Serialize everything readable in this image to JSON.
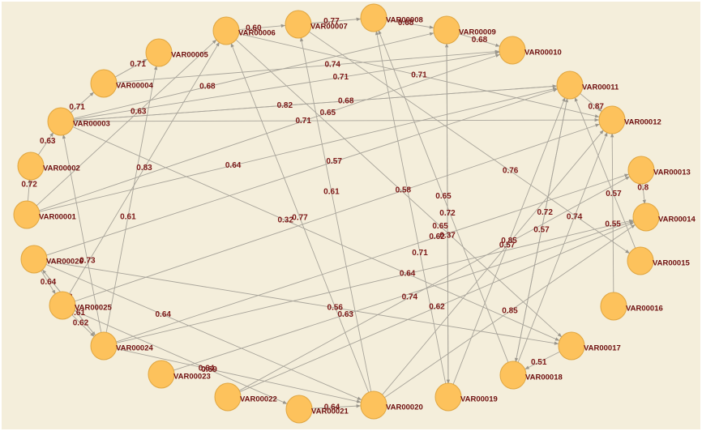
{
  "nodes": [
    {
      "label": "VAR00001"
    },
    {
      "label": "VAR00002"
    },
    {
      "label": "VAR00003"
    },
    {
      "label": "VAR00004"
    },
    {
      "label": "VAR00005"
    },
    {
      "label": "VAR00006"
    },
    {
      "label": "VAR00007"
    },
    {
      "label": "VAR00008"
    },
    {
      "label": "VAR00009"
    },
    {
      "label": "VAR00010"
    },
    {
      "label": "VAR00011"
    },
    {
      "label": "VAR00012"
    },
    {
      "label": "VAR00013"
    },
    {
      "label": "VAR00014"
    },
    {
      "label": "VAR00015"
    },
    {
      "label": "VAR00016"
    },
    {
      "label": "VAR00017"
    },
    {
      "label": "VAR00018"
    },
    {
      "label": "VAR00019"
    },
    {
      "label": "VAR00020"
    },
    {
      "label": "VAR00021"
    },
    {
      "label": "VAR00022"
    },
    {
      "label": "VAR00023"
    },
    {
      "label": "VAR00024"
    },
    {
      "label": "VAR00025"
    },
    {
      "label": "VAR00026"
    }
  ],
  "edges": [
    {
      "from": "VAR00006",
      "to": "VAR00007",
      "label": "0.60"
    },
    {
      "from": "VAR00008",
      "to": "VAR00009",
      "label": "0.68"
    },
    {
      "from": "VAR00009",
      "to": "VAR00010",
      "label": "0.68"
    },
    {
      "from": "VAR00004",
      "to": "VAR00010",
      "label": "0.74"
    },
    {
      "from": "VAR00004",
      "to": "VAR00005",
      "label": "0.71"
    },
    {
      "from": "VAR00003",
      "to": "VAR00004",
      "label": "0.71"
    },
    {
      "from": "VAR00003",
      "to": "VAR00011",
      "label": "0.82"
    },
    {
      "from": "VAR00006",
      "to": "VAR00012",
      "label": "0.71"
    },
    {
      "from": "VAR00001",
      "to": "VAR00006",
      "label": "0.63"
    },
    {
      "from": "VAR00003",
      "to": "VAR00010",
      "label": "0.71"
    },
    {
      "from": "VAR00003",
      "to": "VAR00009",
      "label": "0.68"
    },
    {
      "from": "VAR00003",
      "to": "VAR00012",
      "label": "0.71"
    },
    {
      "from": "VAR00025",
      "to": "VAR00006",
      "label": "0.83"
    },
    {
      "from": "VAR00003",
      "to": "VAR00011",
      "label": "0.68"
    },
    {
      "from": "VAR00007",
      "to": "VAR00015",
      "label": "0.76"
    },
    {
      "from": "VAR00001",
      "to": "VAR00011",
      "label": "0.64"
    },
    {
      "from": "VAR00024",
      "to": "VAR00005",
      "label": "0.61"
    },
    {
      "from": "VAR00020",
      "to": "VAR00006",
      "label": "0.77"
    },
    {
      "from": "VAR00026",
      "to": "VAR00011",
      "label": "0.57"
    },
    {
      "from": "VAR00025",
      "to": "VAR00012",
      "label": "0.58"
    },
    {
      "from": "VAR00019",
      "to": "VAR00008",
      "label": "0.71"
    },
    {
      "from": "VAR00019",
      "to": "VAR00009",
      "label": "0.37"
    },
    {
      "from": "VAR00018",
      "to": "VAR00008",
      "label": "0.65"
    },
    {
      "from": "VAR00020",
      "to": "VAR00007",
      "label": "0.61"
    },
    {
      "from": "VAR00001",
      "to": "VAR00002",
      "label": "0.72"
    },
    {
      "from": "VAR00024",
      "to": "VAR00003",
      "label": "0.73"
    },
    {
      "from": "VAR00026",
      "to": "VAR00024",
      "label": "0.73"
    },
    {
      "from": "VAR00026",
      "to": "VAR00025",
      "label": "0.64"
    },
    {
      "from": "VAR00024",
      "to": "VAR00014",
      "label": "0.64"
    },
    {
      "from": "VAR00024",
      "to": "VAR00013",
      "label": "0.62"
    },
    {
      "from": "VAR00026",
      "to": "VAR00020",
      "label": "0.64"
    },
    {
      "from": "VAR00025",
      "to": "VAR00024",
      "label": "0.62"
    },
    {
      "from": "VAR00022",
      "to": "VAR00014",
      "label": "0.62"
    },
    {
      "from": "VAR00026",
      "to": "VAR00017",
      "label": "0.56"
    },
    {
      "from": "VAR00025",
      "to": "VAR00021",
      "label": "0.59"
    },
    {
      "from": "VAR00024",
      "to": "VAR00020",
      "label": "0.64"
    },
    {
      "from": "VAR00021",
      "to": "VAR00020",
      "label": "0.64"
    },
    {
      "from": "VAR00019",
      "to": "VAR00011",
      "label": "0.85"
    },
    {
      "from": "VAR00018",
      "to": "VAR00011",
      "label": "0.72"
    },
    {
      "from": "VAR00018",
      "to": "VAR00012",
      "label": "0.74"
    },
    {
      "from": "VAR00015",
      "to": "VAR00011",
      "label": "0.57"
    },
    {
      "from": "VAR00016",
      "to": "VAR00012",
      "label": "0.55"
    },
    {
      "from": "VAR00020",
      "to": "VAR00014",
      "label": "0.85"
    },
    {
      "from": "VAR00017",
      "to": "VAR00018",
      "label": "0.51"
    },
    {
      "from": "VAR00011",
      "to": "VAR00012",
      "label": "0.87"
    },
    {
      "from": "VAR00013",
      "to": "VAR00014",
      "label": "0.8"
    },
    {
      "from": "VAR00003",
      "to": "VAR00017",
      "label": "0.32"
    },
    {
      "from": "VAR00009",
      "to": "VAR00019",
      "label": "0.72"
    },
    {
      "from": "VAR00020",
      "to": "VAR00012",
      "label": "0.57"
    },
    {
      "from": "VAR00006",
      "to": "VAR00017",
      "label": "0.65"
    },
    {
      "from": "VAR00023",
      "to": "VAR00014",
      "label": "0.63"
    },
    {
      "from": "VAR00022",
      "to": "VAR00013",
      "label": "0.74"
    },
    {
      "from": "VAR00011",
      "to": "VAR00018",
      "label": "0.57"
    },
    {
      "from": "VAR00002",
      "to": "VAR00003",
      "label": "0.63"
    },
    {
      "from": "VAR00001",
      "to": "VAR00010",
      "label": "0.65"
    },
    {
      "from": "VAR00024",
      "to": "VAR00026",
      "label": "0.61"
    },
    {
      "from": "VAR00007",
      "to": "VAR00008",
      "label": "0.77"
    }
  ]
}
